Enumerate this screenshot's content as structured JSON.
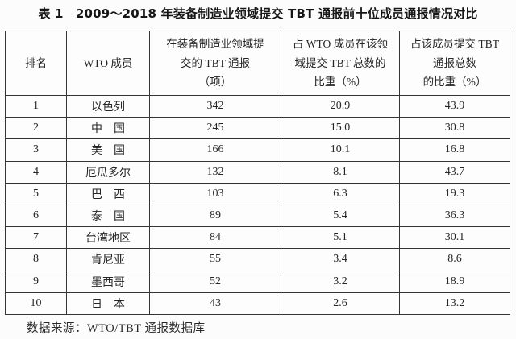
{
  "page": {
    "title": "表 1　2009～2018 年装备制造业领域提交 TBT 通报前十位成员通报情况对比",
    "source_note": "数据来源：WTO/TBT 通报数据库"
  },
  "table": {
    "headers": {
      "rank": "排名",
      "member": "WTO 成员",
      "count_line1": "在装备制造业领域提",
      "count_line2": "交的 TBT 通报",
      "count_line3": "（项）",
      "share_field_line1": "占 WTO 成员在该领",
      "share_field_line2": "域提交 TBT 总数的",
      "share_field_line3": "比重（%）",
      "share_member_line1": "占该成员提交 TBT",
      "share_member_line2": "通报总数",
      "share_member_line3": "的比重（%）"
    },
    "rows": [
      {
        "rank": "1",
        "member": "以色列",
        "count": "342",
        "share_field": "20.9",
        "share_member": "43.9"
      },
      {
        "rank": "2",
        "member": "中　国",
        "count": "245",
        "share_field": "15.0",
        "share_member": "30.8"
      },
      {
        "rank": "3",
        "member": "美　国",
        "count": "166",
        "share_field": "10.1",
        "share_member": "16.8"
      },
      {
        "rank": "4",
        "member": "厄瓜多尔",
        "count": "132",
        "share_field": "8.1",
        "share_member": "43.7"
      },
      {
        "rank": "5",
        "member": "巴　西",
        "count": "103",
        "share_field": "6.3",
        "share_member": "19.3"
      },
      {
        "rank": "6",
        "member": "泰　国",
        "count": "89",
        "share_field": "5.4",
        "share_member": "36.3"
      },
      {
        "rank": "7",
        "member": "台湾地区",
        "count": "84",
        "share_field": "5.1",
        "share_member": "30.1"
      },
      {
        "rank": "8",
        "member": "肯尼亚",
        "count": "55",
        "share_field": "3.4",
        "share_member": "8.6"
      },
      {
        "rank": "9",
        "member": "墨西哥",
        "count": "52",
        "share_field": "3.2",
        "share_member": "18.9"
      },
      {
        "rank": "10",
        "member": "日　本",
        "count": "43",
        "share_field": "2.6",
        "share_member": "13.2"
      }
    ]
  }
}
